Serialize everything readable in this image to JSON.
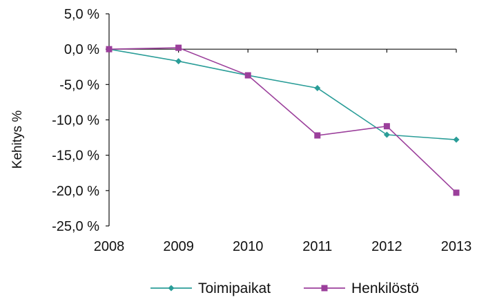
{
  "chart_data": {
    "type": "line",
    "title": "",
    "xlabel": "",
    "ylabel": "Kehitys %",
    "categories": [
      "2008",
      "2009",
      "2010",
      "2011",
      "2012",
      "2013"
    ],
    "ylim": [
      -25,
      5
    ],
    "yticks": [
      5,
      0,
      -5,
      -10,
      -15,
      -20,
      -25
    ],
    "ytick_labels": [
      "5,0 %",
      "0,0 %",
      "-5,0 %",
      "-10,0 %",
      "-15,0 %",
      "-20,0 %",
      "-25,0 %"
    ],
    "grid": false,
    "legend_position": "bottom",
    "series": [
      {
        "name": "Toimipaikat",
        "marker": "diamond",
        "color": "#2a9d98",
        "values": [
          0.0,
          -1.7,
          -3.7,
          -5.5,
          -12.1,
          -12.8
        ]
      },
      {
        "name": "Henkilöstö",
        "marker": "square",
        "color": "#9b3f9b",
        "values": [
          0.0,
          0.2,
          -3.7,
          -12.2,
          -10.9,
          -20.3
        ]
      }
    ]
  }
}
